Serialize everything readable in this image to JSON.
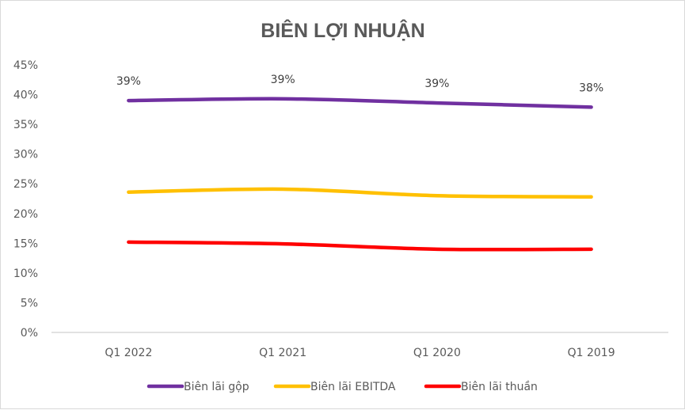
{
  "chart_data": {
    "type": "line",
    "title": "BIÊN LỢI NHUẬN",
    "xlabel": "",
    "ylabel": "",
    "categories": [
      "Q1 2022",
      "Q1 2021",
      "Q1 2020",
      "Q1 2019"
    ],
    "ylim": [
      0,
      45
    ],
    "yticks": [
      0,
      5,
      10,
      15,
      20,
      25,
      30,
      35,
      40,
      45
    ],
    "ytick_labels": [
      "0%",
      "5%",
      "10%",
      "15%",
      "20%",
      "25%",
      "30%",
      "35%",
      "40%",
      "45%"
    ],
    "grid": false,
    "legend_position": "bottom",
    "series": [
      {
        "name": "Biên lãi gộp",
        "color": "#7030a0",
        "values": [
          39.0,
          39.3,
          38.6,
          37.9
        ],
        "data_labels": [
          "39%",
          "39%",
          "39%",
          "38%"
        ]
      },
      {
        "name": "Biên lãi EBITDA",
        "color": "#ffc000",
        "values": [
          23.6,
          24.1,
          23.0,
          22.8
        ]
      },
      {
        "name": "Biên lãi thuần",
        "color": "#ff0000",
        "values": [
          15.2,
          14.9,
          14.0,
          14.0
        ]
      }
    ]
  }
}
